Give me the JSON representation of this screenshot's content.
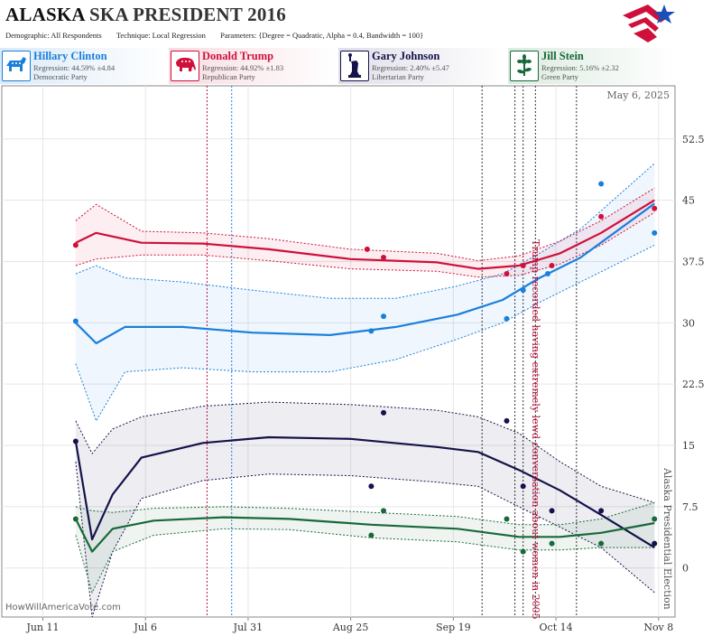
{
  "header": {
    "state": "ALASKA",
    "race": "SKA PRESIDENT 2016",
    "demographic_label": "Demographic:",
    "demographic_value": "All Respondents",
    "technique_label": "Technique:",
    "technique_value": "Local Regression",
    "parameters_label": "Parameters:",
    "parameters_value": "{Degree = Quadratic, Alpha = 0.4, Bandwidth = 100}",
    "logo_icon": "star-flag-logo-icon"
  },
  "candidates": [
    {
      "name": "Hillary Clinton",
      "regression": "Regression: 44.59% ±4.84",
      "party": "Democratic Party",
      "color": "#1a7fdc",
      "icon": "donkey-icon"
    },
    {
      "name": "Donald Trump",
      "regression": "Regression: 44.92% ±1.83",
      "party": "Republican Party",
      "color": "#d0103a",
      "icon": "elephant-icon"
    },
    {
      "name": "Gary Johnson",
      "regression": "Regression: 2.40% ±5.47",
      "party": "Libertarian Party",
      "color": "#14124a",
      "icon": "liberty-statue-icon"
    },
    {
      "name": "Jill Stein",
      "regression": "Regression: 5.16% ±2.32",
      "party": "Green Party",
      "color": "#17693a",
      "icon": "leaf-flower-icon"
    }
  ],
  "watermark": "HowWillAmericaVote.com",
  "chart_data": {
    "type": "line",
    "date_label": "May 6, 2025",
    "x_ticks": [
      "Jun 11",
      "Jul 6",
      "Jul 31",
      "Aug 25",
      "Sep 19",
      "Oct 14",
      "Nov 8"
    ],
    "x_tick_dates": [
      "2016-06-11",
      "2016-07-06",
      "2016-07-31",
      "2016-08-25",
      "2016-09-19",
      "2016-10-14",
      "2016-11-08"
    ],
    "y_ticks": [
      0,
      7.5,
      15,
      22.5,
      30,
      37.5,
      45,
      52.5
    ],
    "ylim": [
      -6,
      59
    ],
    "xlim": [
      "2016-06-01",
      "2016-11-12"
    ],
    "grid": true,
    "annotations": [
      {
        "date": "2016-10-07",
        "text": "Trump recorded having extremely lewd conversation about women in 2005",
        "color": "#b0103a"
      },
      {
        "date": "2016-11-08",
        "text": "Alaska Presidential Election",
        "color": "#555555"
      }
    ],
    "event_lines": [
      {
        "date": "2016-07-21",
        "color": "#c0103a"
      },
      {
        "date": "2016-07-27",
        "color": "#1a7fdc"
      },
      {
        "date": "2016-09-26",
        "color": "#333333"
      },
      {
        "date": "2016-10-04",
        "color": "#333333"
      },
      {
        "date": "2016-10-06",
        "color": "#333333"
      },
      {
        "date": "2016-10-09",
        "color": "#333333"
      },
      {
        "date": "2016-10-19",
        "color": "#333333"
      }
    ],
    "series": [
      {
        "name": "Hillary Clinton",
        "color": "#1a7fdc",
        "points": [
          [
            "2016-06-19",
            30.2
          ],
          [
            "2016-08-30",
            29.0
          ],
          [
            "2016-09-02",
            30.8
          ],
          [
            "2016-10-02",
            30.5
          ],
          [
            "2016-10-06",
            34.0
          ],
          [
            "2016-10-12",
            36.0
          ],
          [
            "2016-10-25",
            47.0
          ],
          [
            "2016-11-07",
            41.0
          ]
        ],
        "trend": [
          [
            "2016-06-19",
            30.0
          ],
          [
            "2016-06-24",
            27.5
          ],
          [
            "2016-07-01",
            29.5
          ],
          [
            "2016-07-15",
            29.5
          ],
          [
            "2016-08-01",
            28.8
          ],
          [
            "2016-08-20",
            28.5
          ],
          [
            "2016-09-05",
            29.5
          ],
          [
            "2016-09-20",
            31.0
          ],
          [
            "2016-10-01",
            32.8
          ],
          [
            "2016-10-10",
            35.5
          ],
          [
            "2016-10-20",
            38.0
          ],
          [
            "2016-11-07",
            44.6
          ]
        ],
        "upper": [
          [
            "2016-06-19",
            36.0
          ],
          [
            "2016-06-24",
            37.0
          ],
          [
            "2016-07-01",
            35.5
          ],
          [
            "2016-07-15",
            35.0
          ],
          [
            "2016-08-01",
            34.0
          ],
          [
            "2016-08-20",
            33.0
          ],
          [
            "2016-09-05",
            33.0
          ],
          [
            "2016-09-20",
            34.5
          ],
          [
            "2016-10-01",
            36.0
          ],
          [
            "2016-10-10",
            38.5
          ],
          [
            "2016-10-20",
            41.5
          ],
          [
            "2016-11-07",
            49.5
          ]
        ],
        "lower": [
          [
            "2016-06-19",
            25.0
          ],
          [
            "2016-06-24",
            18.0
          ],
          [
            "2016-07-01",
            24.0
          ],
          [
            "2016-07-15",
            24.5
          ],
          [
            "2016-08-01",
            24.0
          ],
          [
            "2016-08-20",
            24.0
          ],
          [
            "2016-09-05",
            25.5
          ],
          [
            "2016-09-20",
            28.0
          ],
          [
            "2016-10-01",
            30.0
          ],
          [
            "2016-10-10",
            32.5
          ],
          [
            "2016-10-20",
            35.0
          ],
          [
            "2016-11-07",
            39.5
          ]
        ]
      },
      {
        "name": "Donald Trump",
        "color": "#d0103a",
        "points": [
          [
            "2016-06-19",
            39.5
          ],
          [
            "2016-08-29",
            39.0
          ],
          [
            "2016-09-02",
            38.0
          ],
          [
            "2016-10-02",
            36.0
          ],
          [
            "2016-10-06",
            37.0
          ],
          [
            "2016-10-13",
            37.0
          ],
          [
            "2016-10-25",
            43.0
          ],
          [
            "2016-11-07",
            44.0
          ]
        ],
        "trend": [
          [
            "2016-06-19",
            39.8
          ],
          [
            "2016-06-24",
            41.0
          ],
          [
            "2016-07-05",
            39.8
          ],
          [
            "2016-07-20",
            39.7
          ],
          [
            "2016-08-05",
            39.0
          ],
          [
            "2016-08-25",
            37.8
          ],
          [
            "2016-09-15",
            37.4
          ],
          [
            "2016-09-25",
            36.6
          ],
          [
            "2016-10-05",
            37.0
          ],
          [
            "2016-10-15",
            38.5
          ],
          [
            "2016-10-25",
            41.0
          ],
          [
            "2016-11-07",
            45.0
          ]
        ],
        "upper": [
          [
            "2016-06-19",
            42.5
          ],
          [
            "2016-06-24",
            44.5
          ],
          [
            "2016-07-05",
            41.2
          ],
          [
            "2016-07-20",
            41.0
          ],
          [
            "2016-08-05",
            40.3
          ],
          [
            "2016-08-25",
            39.0
          ],
          [
            "2016-09-15",
            38.5
          ],
          [
            "2016-09-25",
            37.6
          ],
          [
            "2016-10-05",
            38.2
          ],
          [
            "2016-10-15",
            40.0
          ],
          [
            "2016-10-25",
            42.5
          ],
          [
            "2016-11-07",
            46.5
          ]
        ],
        "lower": [
          [
            "2016-06-19",
            37.0
          ],
          [
            "2016-06-24",
            37.8
          ],
          [
            "2016-07-05",
            38.3
          ],
          [
            "2016-07-20",
            38.3
          ],
          [
            "2016-08-05",
            37.6
          ],
          [
            "2016-08-25",
            36.6
          ],
          [
            "2016-09-15",
            36.3
          ],
          [
            "2016-09-25",
            35.6
          ],
          [
            "2016-10-05",
            35.8
          ],
          [
            "2016-10-15",
            37.2
          ],
          [
            "2016-10-25",
            39.5
          ],
          [
            "2016-11-07",
            43.5
          ]
        ]
      },
      {
        "name": "Gary Johnson",
        "color": "#14124a",
        "points": [
          [
            "2016-06-19",
            15.5
          ],
          [
            "2016-08-30",
            10.0
          ],
          [
            "2016-09-02",
            19.0
          ],
          [
            "2016-10-02",
            18.0
          ],
          [
            "2016-10-06",
            10.0
          ],
          [
            "2016-10-13",
            7.0
          ],
          [
            "2016-10-25",
            7.0
          ],
          [
            "2016-11-07",
            3.0
          ]
        ],
        "trend": [
          [
            "2016-06-19",
            15.5
          ],
          [
            "2016-06-23",
            3.5
          ],
          [
            "2016-06-28",
            9.0
          ],
          [
            "2016-07-05",
            13.5
          ],
          [
            "2016-07-20",
            15.3
          ],
          [
            "2016-08-05",
            16.0
          ],
          [
            "2016-08-25",
            15.8
          ],
          [
            "2016-09-15",
            14.8
          ],
          [
            "2016-09-25",
            14.2
          ],
          [
            "2016-10-05",
            12.0
          ],
          [
            "2016-10-15",
            9.5
          ],
          [
            "2016-10-25",
            6.5
          ],
          [
            "2016-11-07",
            2.5
          ]
        ],
        "upper": [
          [
            "2016-06-19",
            18.0
          ],
          [
            "2016-06-23",
            14.0
          ],
          [
            "2016-06-28",
            17.0
          ],
          [
            "2016-07-05",
            18.5
          ],
          [
            "2016-07-20",
            19.8
          ],
          [
            "2016-08-05",
            20.3
          ],
          [
            "2016-08-25",
            20.0
          ],
          [
            "2016-09-15",
            19.3
          ],
          [
            "2016-09-25",
            18.5
          ],
          [
            "2016-10-05",
            16.5
          ],
          [
            "2016-10-15",
            13.0
          ],
          [
            "2016-10-25",
            10.0
          ],
          [
            "2016-11-07",
            8.0
          ]
        ],
        "lower": [
          [
            "2016-06-19",
            13.0
          ],
          [
            "2016-06-23",
            -6.0
          ],
          [
            "2016-06-28",
            2.0
          ],
          [
            "2016-07-05",
            8.5
          ],
          [
            "2016-07-20",
            10.7
          ],
          [
            "2016-08-05",
            11.5
          ],
          [
            "2016-08-25",
            11.3
          ],
          [
            "2016-09-15",
            10.5
          ],
          [
            "2016-09-25",
            10.0
          ],
          [
            "2016-10-05",
            7.5
          ],
          [
            "2016-10-15",
            5.0
          ],
          [
            "2016-10-25",
            2.5
          ],
          [
            "2016-11-07",
            -3.0
          ]
        ]
      },
      {
        "name": "Jill Stein",
        "color": "#17693a",
        "points": [
          [
            "2016-06-19",
            6.0
          ],
          [
            "2016-08-30",
            4.0
          ],
          [
            "2016-09-02",
            7.0
          ],
          [
            "2016-10-02",
            6.0
          ],
          [
            "2016-10-06",
            2.0
          ],
          [
            "2016-10-13",
            3.0
          ],
          [
            "2016-10-25",
            3.0
          ],
          [
            "2016-11-07",
            6.0
          ]
        ],
        "trend": [
          [
            "2016-06-19",
            6.0
          ],
          [
            "2016-06-23",
            2.0
          ],
          [
            "2016-06-28",
            4.8
          ],
          [
            "2016-07-08",
            5.8
          ],
          [
            "2016-07-25",
            6.2
          ],
          [
            "2016-08-10",
            6.0
          ],
          [
            "2016-08-30",
            5.3
          ],
          [
            "2016-09-20",
            4.8
          ],
          [
            "2016-10-05",
            3.8
          ],
          [
            "2016-10-15",
            3.8
          ],
          [
            "2016-10-25",
            4.3
          ],
          [
            "2016-11-07",
            5.5
          ]
        ],
        "upper": [
          [
            "2016-06-19",
            7.5
          ],
          [
            "2016-06-23",
            7.0
          ],
          [
            "2016-06-28",
            6.8
          ],
          [
            "2016-07-08",
            7.3
          ],
          [
            "2016-07-25",
            7.5
          ],
          [
            "2016-08-10",
            7.3
          ],
          [
            "2016-08-30",
            6.8
          ],
          [
            "2016-09-20",
            6.3
          ],
          [
            "2016-10-05",
            5.3
          ],
          [
            "2016-10-15",
            5.3
          ],
          [
            "2016-10-25",
            6.0
          ],
          [
            "2016-11-07",
            8.0
          ]
        ],
        "lower": [
          [
            "2016-06-19",
            4.0
          ],
          [
            "2016-06-23",
            -3.0
          ],
          [
            "2016-06-28",
            2.0
          ],
          [
            "2016-07-08",
            4.0
          ],
          [
            "2016-07-25",
            4.8
          ],
          [
            "2016-08-10",
            4.7
          ],
          [
            "2016-08-30",
            3.7
          ],
          [
            "2016-09-20",
            3.2
          ],
          [
            "2016-10-05",
            2.2
          ],
          [
            "2016-10-15",
            2.2
          ],
          [
            "2016-10-25",
            2.5
          ],
          [
            "2016-11-07",
            2.5
          ]
        ]
      }
    ]
  }
}
